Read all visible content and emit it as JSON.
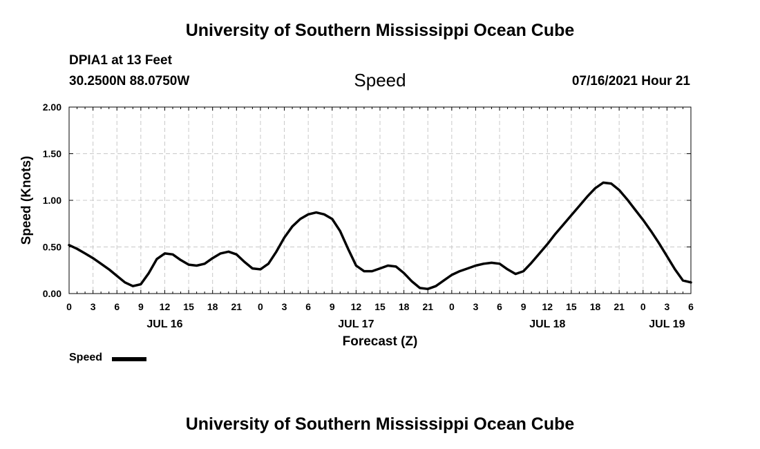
{
  "header": {
    "title": "University of Southern Mississippi Ocean Cube",
    "station": "DPIA1 at 13 Feet",
    "coords": "30.2500N  88.0750W",
    "timestamp": "07/16/2021 Hour 21"
  },
  "footer": {
    "title": "University of Southern Mississippi Ocean Cube"
  },
  "legend": {
    "label": "Speed",
    "color": "#000000"
  },
  "chart_data": {
    "type": "line",
    "title": "Speed",
    "xlabel": "Forecast (Z)",
    "ylabel": "Speed (Knots)",
    "xlim": [
      0,
      78
    ],
    "ylim": [
      0,
      2
    ],
    "grid": true,
    "legend_position": "bottom-left",
    "yticks": [
      0,
      0.5,
      1,
      1.5,
      2
    ],
    "ytick_labels": [
      "0.00",
      "0.50",
      "1.00",
      "1.50",
      "2.00"
    ],
    "xticks": [
      0,
      3,
      6,
      9,
      12,
      15,
      18,
      21,
      24,
      27,
      30,
      33,
      36,
      39,
      42,
      45,
      48,
      51,
      54,
      57,
      60,
      63,
      66,
      69,
      72,
      75,
      78
    ],
    "xtick_labels": [
      "0",
      "3",
      "6",
      "9",
      "12",
      "15",
      "18",
      "21",
      "0",
      "3",
      "6",
      "9",
      "12",
      "15",
      "18",
      "21",
      "0",
      "3",
      "6",
      "9",
      "12",
      "15",
      "18",
      "21",
      "0",
      "3",
      "6"
    ],
    "date_labels": [
      {
        "x": 12,
        "label": "JUL 16"
      },
      {
        "x": 36,
        "label": "JUL 17"
      },
      {
        "x": 60,
        "label": "JUL 18"
      },
      {
        "x": 75,
        "label": "JUL 19"
      }
    ],
    "series": [
      {
        "name": "Speed",
        "x": [
          0,
          1,
          2,
          3,
          4,
          5,
          6,
          7,
          8,
          9,
          10,
          11,
          12,
          13,
          14,
          15,
          16,
          17,
          18,
          19,
          20,
          21,
          22,
          23,
          24,
          25,
          26,
          27,
          28,
          29,
          30,
          31,
          32,
          33,
          34,
          35,
          36,
          37,
          38,
          39,
          40,
          41,
          42,
          43,
          44,
          45,
          46,
          47,
          48,
          49,
          50,
          51,
          52,
          53,
          54,
          55,
          56,
          57,
          58,
          59,
          60,
          61,
          62,
          63,
          64,
          65,
          66,
          67,
          68,
          69,
          70,
          71,
          72,
          73,
          74,
          75,
          76,
          77,
          78
        ],
        "values": [
          0.52,
          0.48,
          0.43,
          0.38,
          0.32,
          0.26,
          0.19,
          0.12,
          0.08,
          0.1,
          0.22,
          0.37,
          0.43,
          0.42,
          0.36,
          0.31,
          0.3,
          0.32,
          0.38,
          0.43,
          0.45,
          0.42,
          0.34,
          0.27,
          0.26,
          0.32,
          0.45,
          0.6,
          0.72,
          0.8,
          0.85,
          0.87,
          0.85,
          0.8,
          0.67,
          0.48,
          0.3,
          0.24,
          0.24,
          0.27,
          0.3,
          0.29,
          0.22,
          0.13,
          0.06,
          0.05,
          0.08,
          0.14,
          0.2,
          0.24,
          0.27,
          0.3,
          0.32,
          0.33,
          0.32,
          0.26,
          0.21,
          0.24,
          0.33,
          0.43,
          0.53,
          0.64,
          0.74,
          0.84,
          0.94,
          1.04,
          1.13,
          1.19,
          1.18,
          1.11,
          1.01,
          0.9,
          0.79,
          0.67,
          0.54,
          0.4,
          0.26,
          0.14,
          0.12
        ]
      }
    ]
  }
}
